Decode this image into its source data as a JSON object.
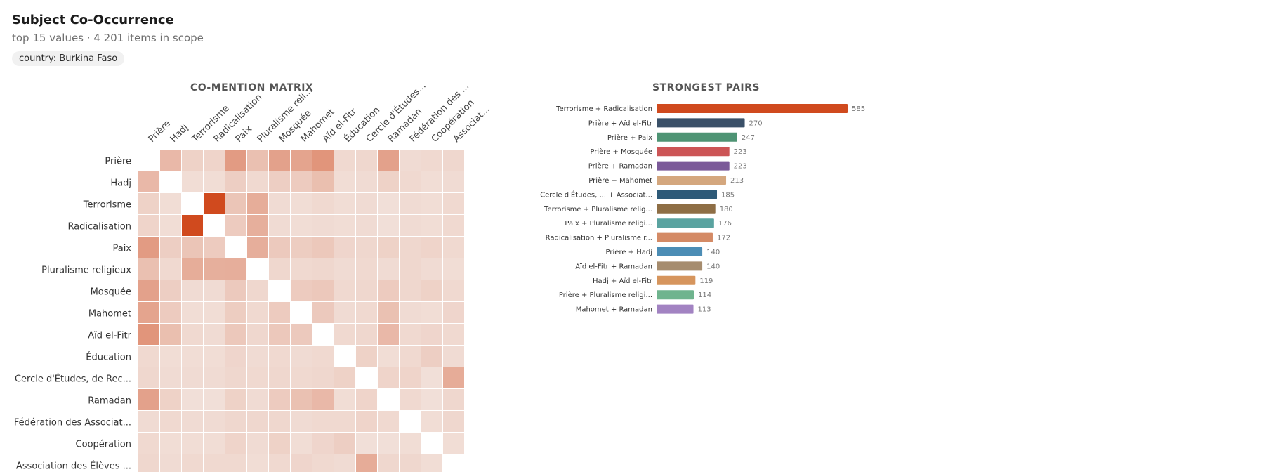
{
  "header": {
    "title": "Subject Co-Occurrence",
    "subtitle": "top 15 values · 4 201 items in scope",
    "filter_chip": "country: Burkina Faso"
  },
  "panels": {
    "matrix_title": "CO-MENTION MATRIX",
    "pairs_title": "STRONGEST PAIRS"
  },
  "colors": {
    "heat_low": "#f4ece8",
    "heat_high": "#d04a1e"
  },
  "chart_data": [
    {
      "type": "heatmap",
      "title": "CO-MENTION MATRIX",
      "row_labels": [
        "Prière",
        "Hadj",
        "Terrorisme",
        "Radicalisation",
        "Paix",
        "Pluralisme religieux",
        "Mosquée",
        "Mahomet",
        "Aïd el-Fitr",
        "Éducation",
        "Cercle d'Études, de Rec...",
        "Ramadan",
        "Fédération des Associat...",
        "Coopération",
        "Association des Élèves ..."
      ],
      "col_labels": [
        "Prière",
        "Hadj",
        "Terrorisme",
        "Radicalisation",
        "Paix",
        "Pluralisme reli...",
        "Mosquée",
        "Mahomet",
        "Aïd el-Fitr",
        "Éducation",
        "Cercle d'Études...",
        "Ramadan",
        "Fédération des ...",
        "Coopération",
        "Associat..."
      ],
      "values": [
        [
          null,
          140,
          60,
          55,
          247,
          114,
          223,
          213,
          270,
          40,
          45,
          223,
          35,
          40,
          45
        ],
        [
          140,
          null,
          30,
          30,
          70,
          40,
          70,
          80,
          119,
          30,
          35,
          60,
          40,
          30,
          35
        ],
        [
          60,
          30,
          null,
          585,
          100,
          180,
          35,
          30,
          40,
          30,
          35,
          25,
          35,
          30,
          40
        ],
        [
          55,
          30,
          585,
          null,
          80,
          172,
          35,
          30,
          35,
          30,
          35,
          25,
          35,
          30,
          40
        ],
        [
          247,
          70,
          100,
          80,
          null,
          176,
          85,
          75,
          90,
          50,
          45,
          60,
          45,
          55,
          40
        ],
        [
          114,
          40,
          180,
          172,
          176,
          null,
          45,
          40,
          45,
          35,
          40,
          35,
          45,
          35,
          30
        ],
        [
          223,
          70,
          35,
          35,
          85,
          45,
          null,
          80,
          90,
          40,
          45,
          80,
          45,
          60,
          40
        ],
        [
          213,
          80,
          30,
          30,
          75,
          40,
          80,
          null,
          85,
          35,
          40,
          113,
          35,
          30,
          50
        ],
        [
          270,
          119,
          40,
          35,
          90,
          45,
          90,
          85,
          null,
          40,
          45,
          140,
          40,
          50,
          40
        ],
        [
          40,
          30,
          30,
          30,
          50,
          35,
          40,
          35,
          40,
          null,
          60,
          30,
          40,
          70,
          35
        ],
        [
          45,
          35,
          35,
          35,
          45,
          40,
          45,
          40,
          45,
          60,
          null,
          55,
          55,
          25,
          185
        ],
        [
          223,
          60,
          25,
          25,
          60,
          35,
          80,
          113,
          140,
          30,
          55,
          null,
          40,
          25,
          45
        ],
        [
          35,
          40,
          35,
          35,
          45,
          45,
          45,
          35,
          40,
          40,
          55,
          40,
          null,
          30,
          45
        ],
        [
          40,
          30,
          30,
          30,
          55,
          35,
          60,
          30,
          50,
          70,
          25,
          25,
          30,
          null,
          30
        ],
        [
          45,
          35,
          40,
          40,
          40,
          30,
          40,
          50,
          40,
          35,
          185,
          45,
          45,
          30,
          null
        ]
      ]
    },
    {
      "type": "bar",
      "orientation": "horizontal",
      "title": "STRONGEST PAIRS",
      "categories": [
        "Terrorisme + Radicalisation",
        "Prière + Aïd el-Fitr",
        "Prière + Paix",
        "Prière + Mosquée",
        "Prière + Ramadan",
        "Prière + Mahomet",
        "Cercle d'Études, ... + Associat...",
        "Terrorisme + Pluralisme relig...",
        "Paix + Pluralisme religi...",
        "Radicalisation + Pluralisme r...",
        "Prière + Hadj",
        "Aïd el-Fitr + Ramadan",
        "Hadj + Aïd el-Fitr",
        "Prière + Pluralisme religi...",
        "Mahomet + Ramadan"
      ],
      "values": [
        585,
        270,
        247,
        223,
        223,
        213,
        185,
        180,
        176,
        172,
        140,
        140,
        119,
        114,
        113
      ],
      "value_labels": [
        "585",
        "270",
        "247",
        "223",
        "223",
        "213",
        "185",
        "180",
        "176",
        "172",
        "140",
        "140",
        "119",
        "114",
        "113"
      ],
      "colors": [
        "#d04a1e",
        "#3a5068",
        "#4e9474",
        "#cc5556",
        "#7b5a99",
        "#d4a77e",
        "#2e5a78",
        "#8e6e45",
        "#5aa3a0",
        "#d48a65",
        "#4c8db5",
        "#a68c6e",
        "#d6955d",
        "#6fb48e",
        "#a283c2"
      ]
    }
  ]
}
